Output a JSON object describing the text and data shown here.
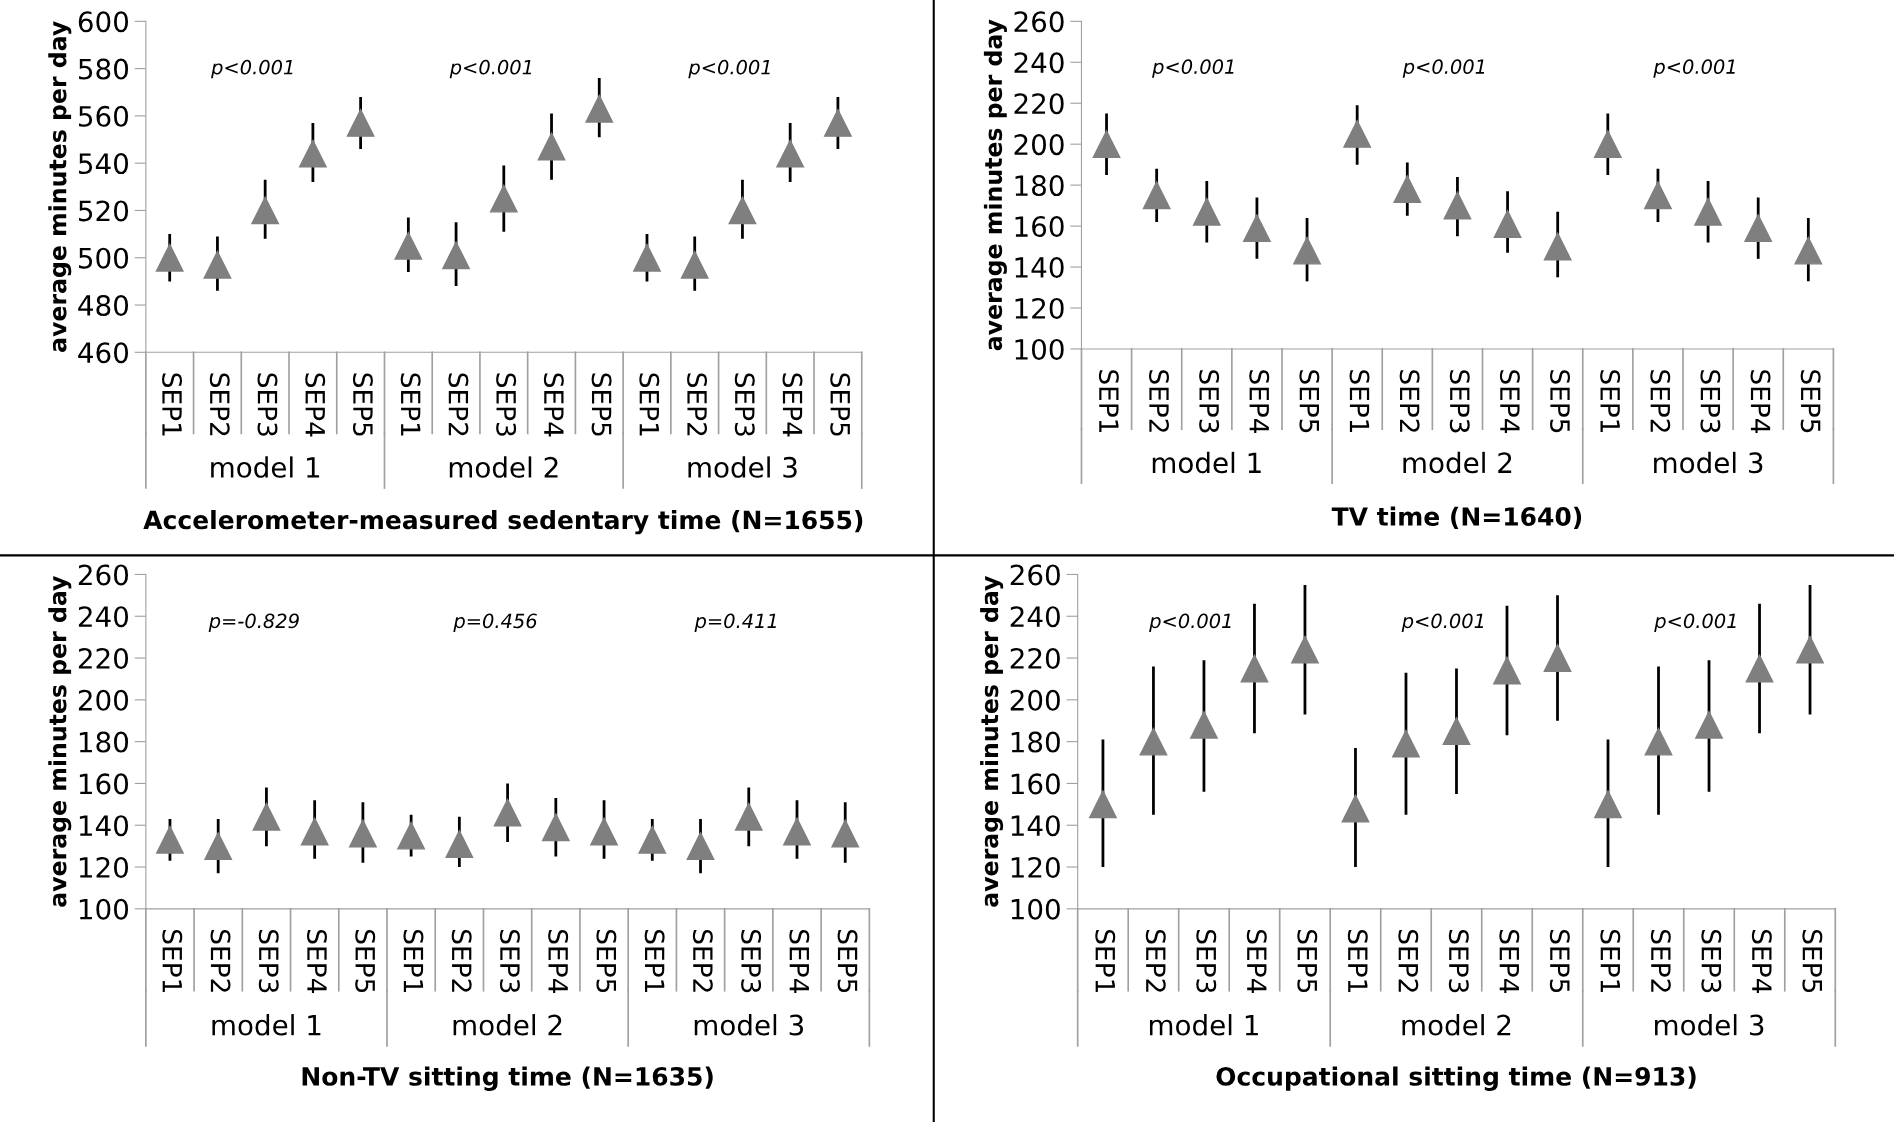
{
  "chart_data": [
    {
      "type": "scatter",
      "title": "Accelerometer-measured sedentary time (N=1655)",
      "ylabel": "average minutes per day",
      "categories": [
        "SEP1",
        "SEP2",
        "SEP3",
        "SEP4",
        "SEP5",
        "SEP1",
        "SEP2",
        "SEP3",
        "SEP4",
        "SEP5",
        "SEP1",
        "SEP2",
        "SEP3",
        "SEP4",
        "SEP5"
      ],
      "series": [
        {
          "color": "#7f7f7f",
          "values": [
            500,
            497,
            520,
            544,
            557,
            505,
            501,
            525,
            547,
            563,
            500,
            497,
            520,
            544,
            557
          ],
          "errors": [
            [
              490,
              510
            ],
            [
              486,
              509
            ],
            [
              508,
              533
            ],
            [
              532,
              557
            ],
            [
              546,
              568
            ],
            [
              494,
              517
            ],
            [
              488,
              515
            ],
            [
              511,
              539
            ],
            [
              533,
              561
            ],
            [
              551,
              576
            ],
            [
              490,
              510
            ],
            [
              486,
              509
            ],
            [
              508,
              533
            ],
            [
              532,
              557
            ],
            [
              546,
              568
            ]
          ]
        }
      ],
      "ylim": [
        460,
        600
      ],
      "yticks": [
        460,
        480,
        500,
        520,
        540,
        560,
        580,
        600
      ],
      "marker": "triangle",
      "grid": false,
      "legend": false,
      "annotations": [
        "p<0.001",
        "p<0.001",
        "p<0.001",
        "model 1",
        "model 2",
        "model 3"
      ]
    },
    {
      "type": "scatter",
      "title": "TV time (N=1640)",
      "ylabel": "average minutes per day",
      "categories": [
        "SEP1",
        "SEP2",
        "SEP3",
        "SEP4",
        "SEP5",
        "SEP1",
        "SEP2",
        "SEP3",
        "SEP4",
        "SEP5",
        "SEP1",
        "SEP2",
        "SEP3",
        "SEP4",
        "SEP5"
      ],
      "series": [
        {
          "color": "#7f7f7f",
          "values": [
            200,
            175,
            167,
            159,
            148,
            205,
            178,
            170,
            161,
            150,
            200,
            175,
            167,
            159,
            148
          ],
          "errors": [
            [
              185,
              215
            ],
            [
              162,
              188
            ],
            [
              152,
              182
            ],
            [
              144,
              174
            ],
            [
              133,
              164
            ],
            [
              190,
              219
            ],
            [
              165,
              191
            ],
            [
              155,
              184
            ],
            [
              147,
              177
            ],
            [
              135,
              167
            ],
            [
              185,
              215
            ],
            [
              162,
              188
            ],
            [
              152,
              182
            ],
            [
              144,
              174
            ],
            [
              133,
              164
            ]
          ]
        }
      ],
      "ylim": [
        100,
        260
      ],
      "yticks": [
        100,
        120,
        140,
        160,
        180,
        200,
        220,
        240,
        260
      ],
      "marker": "triangle",
      "grid": false,
      "legend": false,
      "annotations": [
        "p<0.001",
        "p<0.001",
        "p<0.001",
        "model 1",
        "model 2",
        "model 3"
      ]
    },
    {
      "type": "scatter",
      "title": "Non-TV sitting time (N=1635)",
      "ylabel": "average minutes per day",
      "categories": [
        "SEP1",
        "SEP2",
        "SEP3",
        "SEP4",
        "SEP5",
        "SEP1",
        "SEP2",
        "SEP3",
        "SEP4",
        "SEP5",
        "SEP1",
        "SEP2",
        "SEP3",
        "SEP4",
        "SEP5"
      ],
      "series": [
        {
          "color": "#7f7f7f",
          "values": [
            133,
            130,
            144,
            137,
            136,
            135,
            131,
            146,
            139,
            137,
            133,
            130,
            144,
            137,
            136
          ],
          "errors": [
            [
              123,
              143
            ],
            [
              117,
              143
            ],
            [
              130,
              158
            ],
            [
              124,
              152
            ],
            [
              122,
              151
            ],
            [
              125,
              145
            ],
            [
              120,
              144
            ],
            [
              132,
              160
            ],
            [
              125,
              153
            ],
            [
              124,
              152
            ],
            [
              123,
              143
            ],
            [
              117,
              143
            ],
            [
              130,
              158
            ],
            [
              124,
              152
            ],
            [
              122,
              151
            ]
          ]
        }
      ],
      "ylim": [
        100,
        260
      ],
      "yticks": [
        100,
        120,
        140,
        160,
        180,
        200,
        220,
        240,
        260
      ],
      "marker": "triangle",
      "grid": false,
      "legend": false,
      "annotations": [
        "p=-0.829",
        "p=0.456",
        "p=0.411",
        "model 1",
        "model 2",
        "model 3"
      ]
    },
    {
      "type": "scatter",
      "title": "Occupational sitting time (N=913)",
      "ylabel": "average minutes per day",
      "categories": [
        "SEP1",
        "SEP2",
        "SEP3",
        "SEP4",
        "SEP5",
        "SEP1",
        "SEP2",
        "SEP3",
        "SEP4",
        "SEP5",
        "SEP1",
        "SEP2",
        "SEP3",
        "SEP4",
        "SEP5"
      ],
      "series": [
        {
          "color": "#7f7f7f",
          "values": [
            150,
            180,
            188,
            215,
            224,
            148,
            179,
            185,
            214,
            220,
            150,
            180,
            188,
            215,
            224
          ],
          "errors": [
            [
              120,
              181
            ],
            [
              145,
              216
            ],
            [
              156,
              219
            ],
            [
              184,
              246
            ],
            [
              193,
              255
            ],
            [
              120,
              177
            ],
            [
              145,
              213
            ],
            [
              155,
              215
            ],
            [
              183,
              245
            ],
            [
              190,
              250
            ],
            [
              120,
              181
            ],
            [
              145,
              216
            ],
            [
              156,
              219
            ],
            [
              184,
              246
            ],
            [
              193,
              255
            ]
          ]
        }
      ],
      "ylim": [
        100,
        260
      ],
      "yticks": [
        100,
        120,
        140,
        160,
        180,
        200,
        220,
        240,
        260
      ],
      "marker": "triangle",
      "grid": false,
      "legend": false,
      "annotations": [
        "p<0.001",
        "p<0.001",
        "p<0.001",
        "model 1",
        "model 2",
        "model 3"
      ]
    }
  ]
}
